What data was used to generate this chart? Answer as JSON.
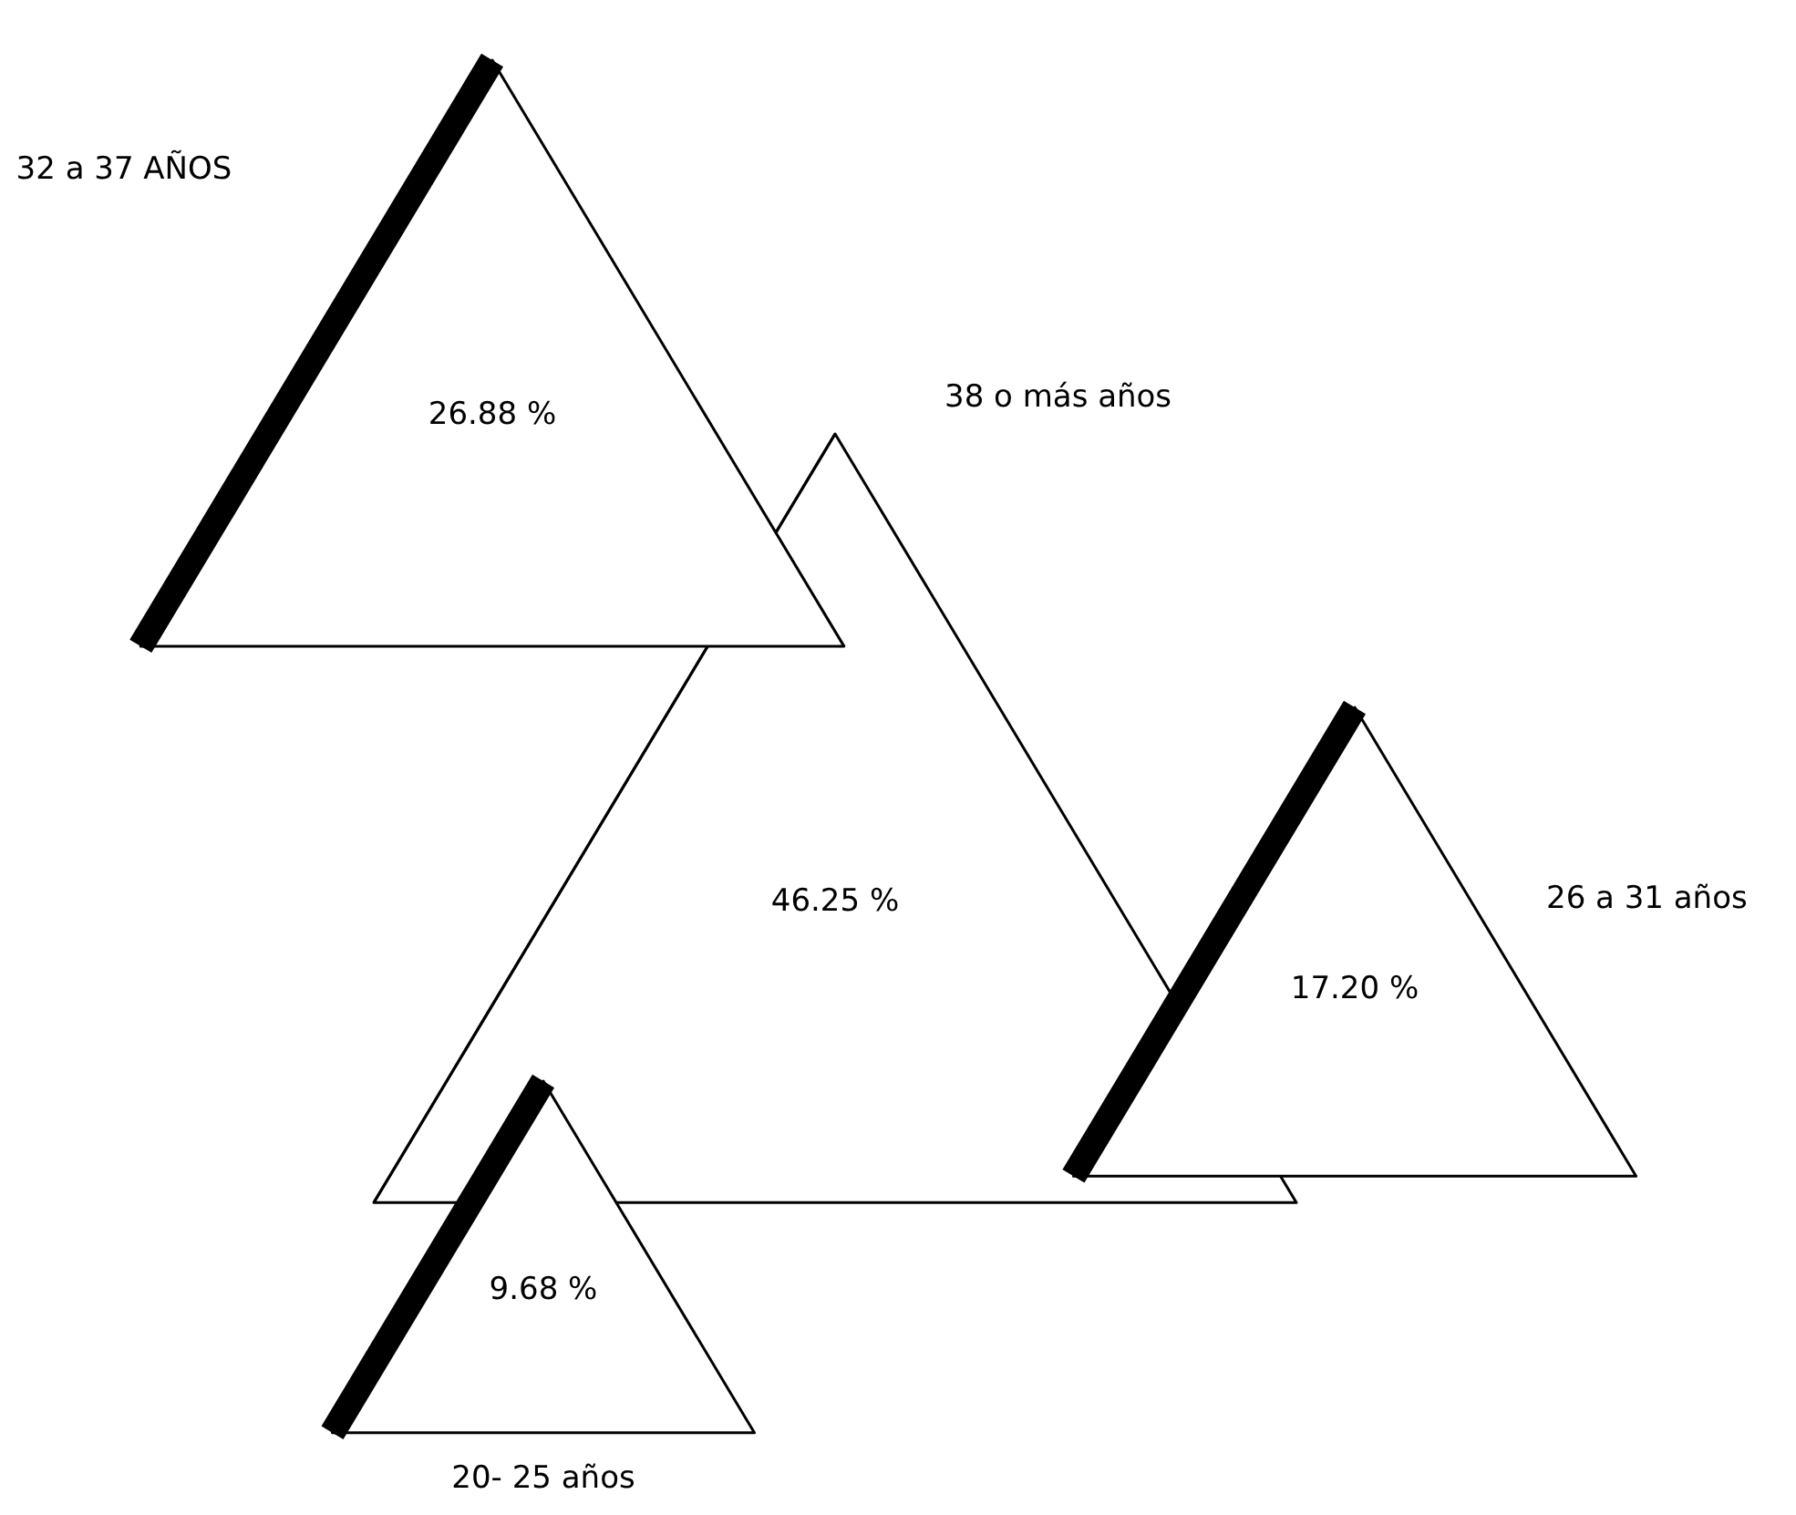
{
  "chart_data": {
    "type": "other",
    "categories": [
      "32 a 37 AÑOS",
      "38 o más años",
      "26 a 31 años",
      "20- 25 años"
    ],
    "values": [
      26.88,
      46.25,
      17.2,
      9.68
    ],
    "value_labels": [
      "26.88 %",
      "46.25 %",
      "17.20 %",
      "9.68 %"
    ]
  }
}
